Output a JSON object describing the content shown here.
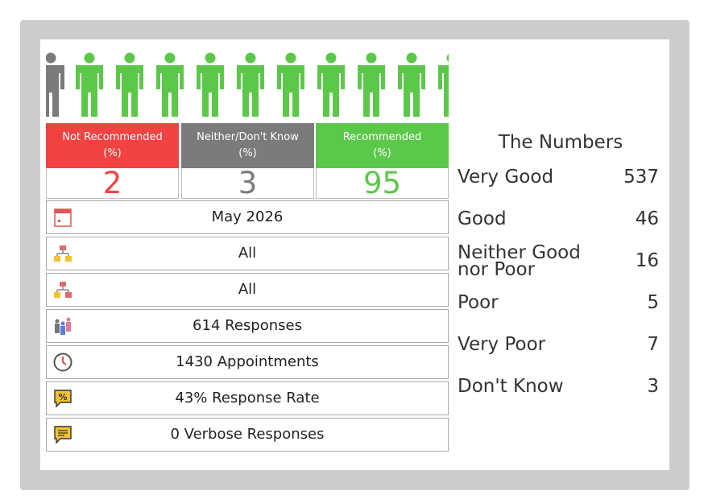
{
  "tiles": {
    "not_recommended": {
      "label": "Not Recommended",
      "unit": "(%)",
      "value": "2",
      "color": "#f24242"
    },
    "neither": {
      "label": "Neither/Don't Know",
      "unit": "(%)",
      "value": "3",
      "color": "#7b7b7b"
    },
    "recommended": {
      "label": "Recommended",
      "unit": "(%)",
      "value": "95",
      "color": "#5cc84a"
    }
  },
  "rows": [
    {
      "icon": "calendar-icon",
      "text": "May 2026"
    },
    {
      "icon": "org-chart-icon",
      "text": "All"
    },
    {
      "icon": "org-chart-alt-icon",
      "text": "All"
    },
    {
      "icon": "people-icon",
      "text": "614 Responses"
    },
    {
      "icon": "clock-icon",
      "text": "1430 Appointments"
    },
    {
      "icon": "percent-chat-icon",
      "text": "43% Response Rate"
    },
    {
      "icon": "comment-icon",
      "text": "0 Verbose Responses"
    }
  ],
  "numbers": {
    "title": "The Numbers",
    "items": [
      {
        "label": "Very Good",
        "value": "537"
      },
      {
        "label": "Good",
        "value": "46"
      },
      {
        "label": "Neither Good",
        "label2": "nor Poor",
        "value": "16"
      },
      {
        "label": "Poor",
        "value": "5"
      },
      {
        "label": "Very Poor",
        "value": "7"
      },
      {
        "label": "Don't Know",
        "value": "3"
      }
    ]
  }
}
